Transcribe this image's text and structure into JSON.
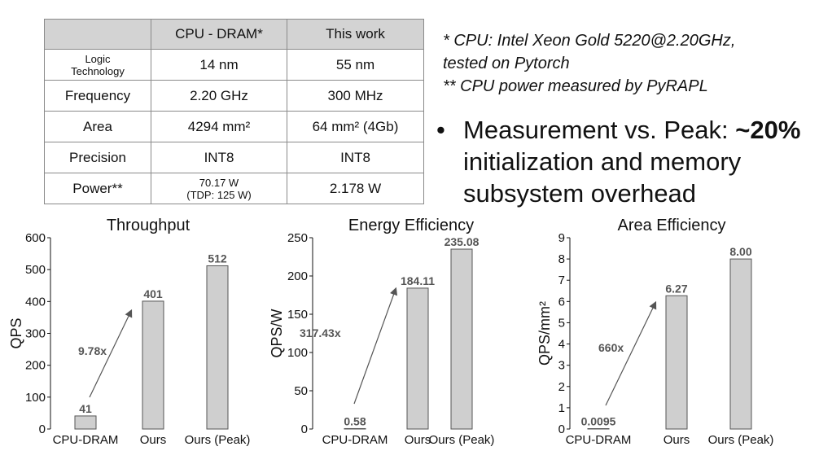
{
  "table": {
    "headers": [
      "",
      "CPU - DRAM*",
      "This work"
    ],
    "rows": [
      {
        "label": "Logic Technology",
        "label_lines": [
          "Logic",
          "Technology"
        ],
        "cpu": "14 nm",
        "ours": "55 nm"
      },
      {
        "label": "Frequency",
        "cpu": "2.20 GHz",
        "ours": "300 MHz"
      },
      {
        "label": "Area",
        "cpu": "4294 mm²",
        "ours": "64 mm² (4Gb)"
      },
      {
        "label": "Precision",
        "cpu": "INT8",
        "ours": "INT8"
      },
      {
        "label": "Power**",
        "cpu_lines": [
          "70.17 W",
          "(TDP: 125 W)"
        ],
        "ours": "2.178 W"
      }
    ]
  },
  "notes": [
    "* CPU: Intel Xeon Gold 5220@2.20GHz,",
    "tested on Pytorch",
    "** CPU power measured by PyRAPL"
  ],
  "bullet": {
    "lines": [
      "Measurement vs. Peak: ",
      "initialization and memory",
      "subsystem overhead"
    ],
    "emphasis": "~20%"
  },
  "colors": {
    "bar_fill": "#cfcfcf",
    "bar_stroke": "#555555",
    "label": "#555555",
    "axis": "#111111"
  },
  "chart_data": [
    {
      "type": "bar",
      "title": "Throughput",
      "ylabel": "QPS",
      "categories": [
        "CPU-DRAM",
        "Ours",
        "Ours (Peak)"
      ],
      "values": [
        41,
        401,
        512
      ],
      "value_labels": [
        "41",
        "401",
        "512"
      ],
      "ylim": [
        0,
        600
      ],
      "yticks": [
        0,
        100,
        200,
        300,
        400,
        500,
        600
      ],
      "annotation": "9.78x",
      "grid": false
    },
    {
      "type": "bar",
      "title": "Energy Efficiency",
      "ylabel": "QPS/W",
      "categories": [
        "CPU-DRAM",
        "Ours",
        "Ours (Peak)"
      ],
      "values": [
        0.58,
        184.11,
        235.08
      ],
      "value_labels": [
        "0.58",
        "184.11",
        "235.08"
      ],
      "ylim": [
        0,
        250
      ],
      "yticks": [
        0,
        50,
        100,
        150,
        200,
        250
      ],
      "annotation": "317.43x",
      "grid": false
    },
    {
      "type": "bar",
      "title": "Area Efficiency",
      "ylabel": "QPS/mm²",
      "categories": [
        "CPU-DRAM",
        "Ours",
        "Ours (Peak)"
      ],
      "values": [
        0.0095,
        6.27,
        8.0
      ],
      "value_labels": [
        "0.0095",
        "6.27",
        "8.00"
      ],
      "ylim": [
        0,
        9
      ],
      "yticks": [
        0,
        1,
        2,
        3,
        4,
        5,
        6,
        7,
        8,
        9
      ],
      "annotation": "660x",
      "grid": false
    }
  ]
}
